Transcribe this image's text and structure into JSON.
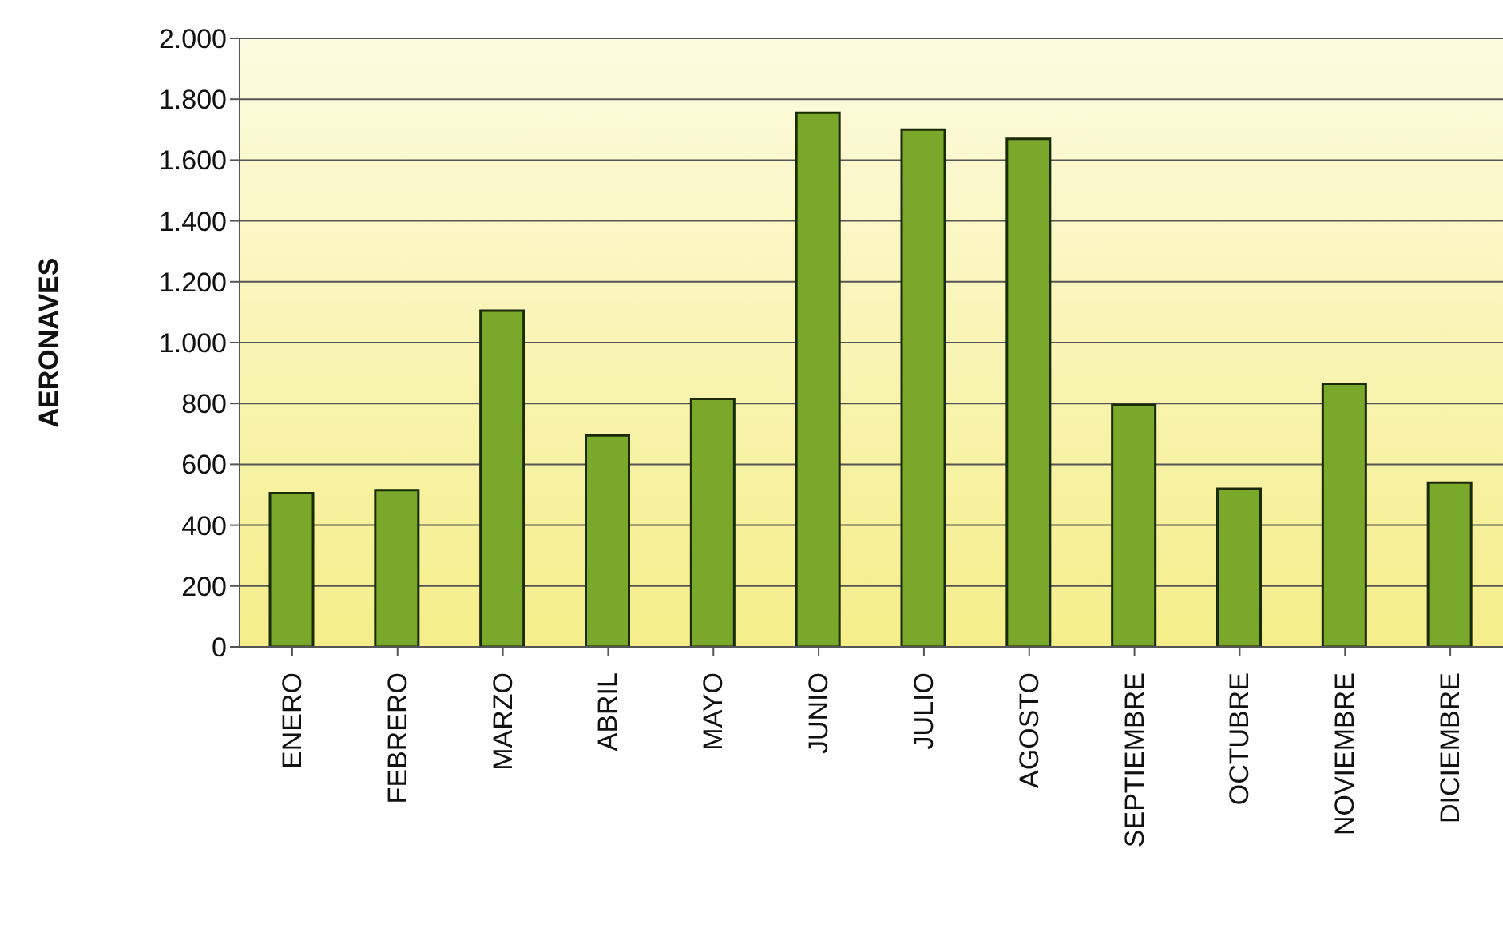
{
  "chart_data": {
    "type": "bar",
    "ylabel": "AERONAVES",
    "categories": [
      "ENERO",
      "FEBRERO",
      "MARZO",
      "ABRIL",
      "MAYO",
      "JUNIO",
      "JULIO",
      "AGOSTO",
      "SEPTIEMBRE",
      "OCTUBRE",
      "NOVIEMBRE",
      "DICIEMBRE"
    ],
    "values": [
      505,
      515,
      1105,
      695,
      815,
      1755,
      1700,
      1670,
      795,
      520,
      865,
      540
    ],
    "color": "#7aa82a",
    "ylim": [
      0,
      2000
    ],
    "yticks": [
      {
        "value": 0,
        "label": "0"
      },
      {
        "value": 200,
        "label": "200"
      },
      {
        "value": 400,
        "label": "400"
      },
      {
        "value": 600,
        "label": "600"
      },
      {
        "value": 800,
        "label": "800"
      },
      {
        "value": 1000,
        "label": "1.000"
      },
      {
        "value": 1200,
        "label": "1.200"
      },
      {
        "value": 1400,
        "label": "1.400"
      },
      {
        "value": 1600,
        "label": "1.600"
      },
      {
        "value": 1800,
        "label": "1.800"
      },
      {
        "value": 2000,
        "label": "2.000"
      }
    ],
    "grid": "y",
    "legend": false
  }
}
